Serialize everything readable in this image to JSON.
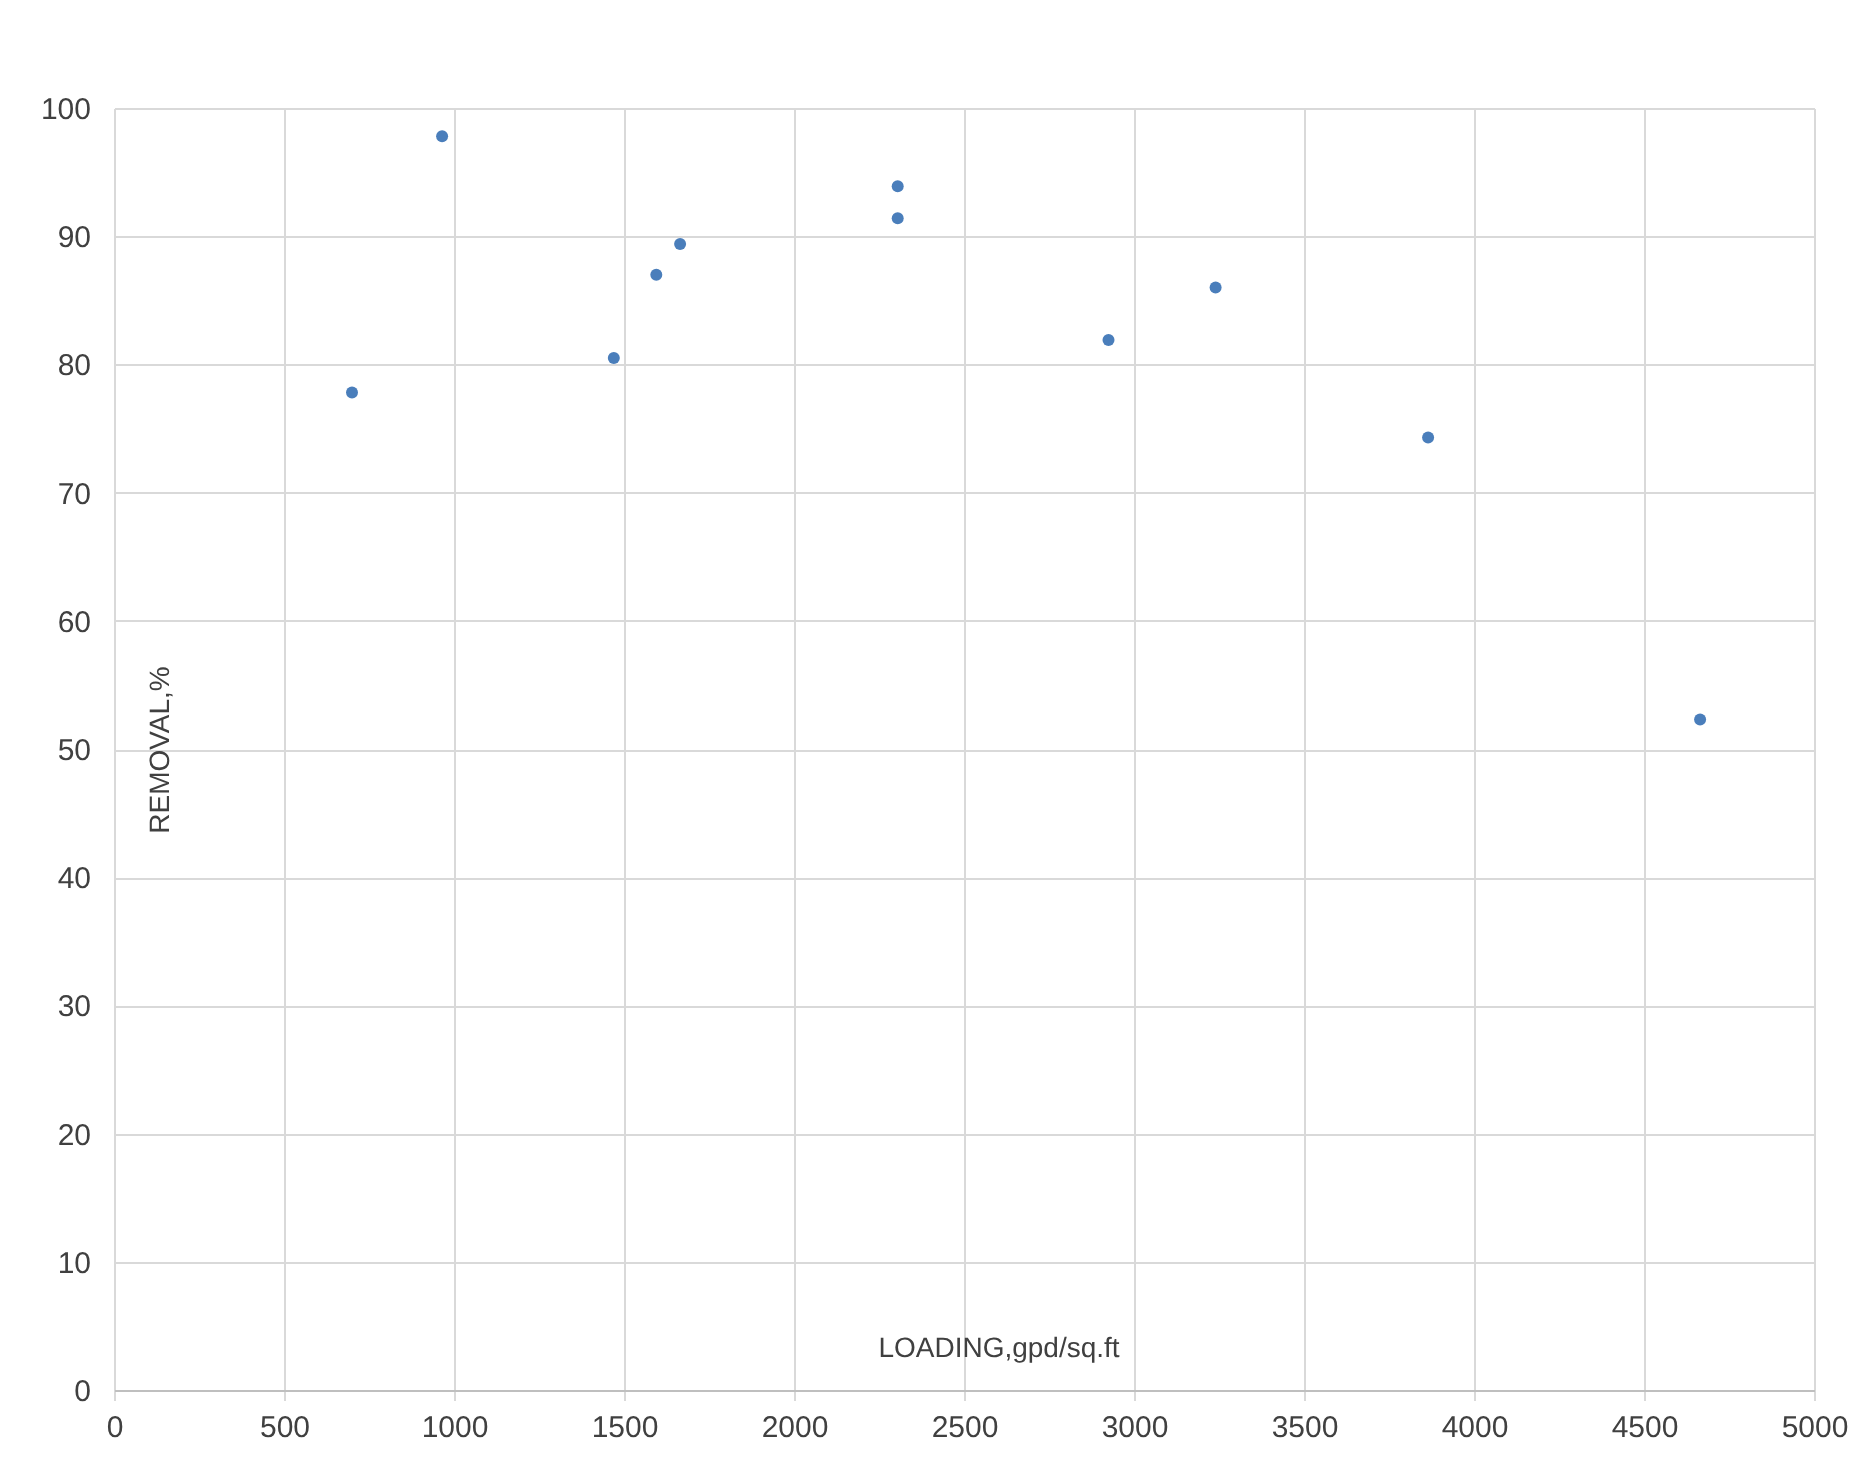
{
  "chart_data": {
    "type": "scatter",
    "xlabel": "LOADING,gpd/sq.ft",
    "ylabel": "REMOVAL,%",
    "x": [
      700,
      965,
      1470,
      1595,
      1665,
      2305,
      2305,
      2925,
      3240,
      3865,
      4665
    ],
    "series": [
      {
        "color": "#4a7ebb",
        "values": [
          77.8,
          97.8,
          80.5,
          87.0,
          89.4,
          93.9,
          91.4,
          81.9,
          86.0,
          74.3,
          52.3
        ]
      }
    ],
    "xlim": [
      0,
      5000
    ],
    "xticks": [
      0,
      500,
      1000,
      1500,
      2000,
      2500,
      3000,
      3500,
      4000,
      4500,
      5000
    ],
    "ylim": [
      0,
      100
    ],
    "yticks": [
      0,
      10,
      20,
      30,
      40,
      50,
      60,
      70,
      80,
      90,
      100
    ],
    "grid": true,
    "marker": "circle"
  }
}
